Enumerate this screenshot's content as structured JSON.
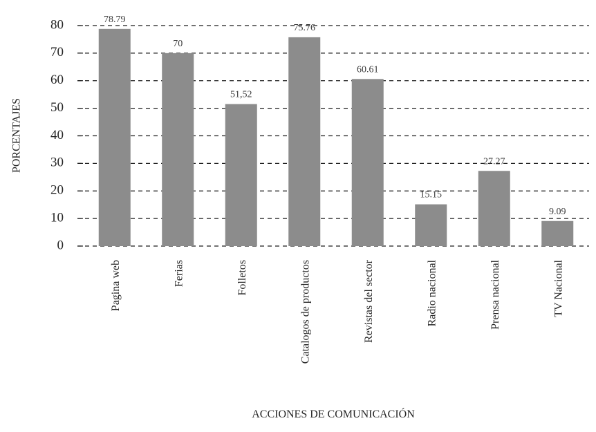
{
  "chart_data": {
    "type": "bar",
    "title": "",
    "xlabel": "ACCIONES DE COMUNICACIÓN",
    "ylabel": "PORCENTAJES",
    "ylim": [
      0,
      80
    ],
    "yticks": [
      0,
      10,
      20,
      30,
      40,
      50,
      60,
      70,
      80
    ],
    "grid": true,
    "legend": "none",
    "bar_color": "#8c8c8c",
    "categories": [
      "Pagina web",
      "Ferias",
      "Folletos",
      "Catalogos de productos",
      "Revistas del sector",
      "Radio nacional",
      "Prensa nacional",
      "TV Nacional"
    ],
    "values": [
      78.79,
      70,
      51.52,
      75.76,
      60.61,
      15.15,
      27.27,
      9.09
    ],
    "data_labels": [
      "78.79",
      "70",
      "51,52",
      "75.76",
      "60.61",
      "15.15",
      "27.27",
      "9.09"
    ]
  }
}
